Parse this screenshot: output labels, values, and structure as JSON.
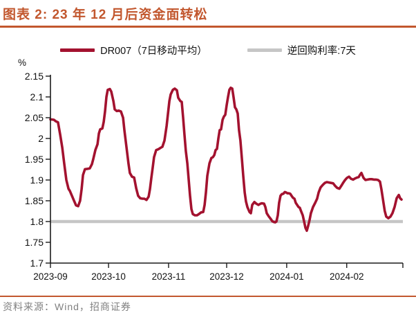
{
  "header": {
    "title": "图表 2: 23 年 12 月后资金面转松"
  },
  "footer": {
    "source": "资料来源：Wind，招商证券"
  },
  "colors": {
    "accent_rule": "#C2572E",
    "title_text": "#C2572E",
    "dr007_line": "#A3122F",
    "repo_line": "#C6C6C6",
    "axis": "#1a1a1a",
    "tick_text": "#111111",
    "source_text": "#808080"
  },
  "chart_data": {
    "type": "line",
    "title": "图表 2: 23 年 12 月后资金面转松",
    "unit_label": "%",
    "ylim": [
      1.7,
      2.15
    ],
    "grid": false,
    "legend_position": "top-center",
    "y_ticks": [
      {
        "v": 2.15,
        "label": "2.15"
      },
      {
        "v": 2.1,
        "label": "2.1"
      },
      {
        "v": 2.05,
        "label": "2.05"
      },
      {
        "v": 2.0,
        "label": "2"
      },
      {
        "v": 1.95,
        "label": "1.95"
      },
      {
        "v": 1.9,
        "label": "1.9"
      },
      {
        "v": 1.85,
        "label": "1.85"
      },
      {
        "v": 1.8,
        "label": "1.8"
      },
      {
        "v": 1.75,
        "label": "1.75"
      },
      {
        "v": 1.7,
        "label": "1.7"
      }
    ],
    "x_range_days": 182,
    "x_start": "2023-09-01",
    "x_ticks": [
      {
        "day": 0,
        "label": "2023-09"
      },
      {
        "day": 30,
        "label": "2023-10"
      },
      {
        "day": 61,
        "label": "2023-11"
      },
      {
        "day": 91,
        "label": "2023-12"
      },
      {
        "day": 122,
        "label": "2024-01"
      },
      {
        "day": 153,
        "label": "2024-02"
      },
      {
        "day": 182,
        "label": ""
      }
    ],
    "legend": [
      {
        "label": "DR007（7日移动平均）",
        "color": "#A3122F"
      },
      {
        "label": "逆回购利率:7天",
        "color": "#C6C6C6"
      }
    ],
    "series": [
      {
        "name": "DR007（7日移动平均）",
        "type": "line",
        "color": "#A3122F",
        "points": [
          [
            0,
            2.046
          ],
          [
            1.8,
            2.045
          ],
          [
            2.9,
            2.041
          ],
          [
            3.9,
            2.039
          ],
          [
            5,
            2.01
          ],
          [
            6.1,
            1.978
          ],
          [
            7.1,
            1.94
          ],
          [
            8.2,
            1.9
          ],
          [
            9.3,
            1.879
          ],
          [
            10,
            1.874
          ],
          [
            11.1,
            1.862
          ],
          [
            12.1,
            1.851
          ],
          [
            13.2,
            1.839
          ],
          [
            14.3,
            1.837
          ],
          [
            15.3,
            1.85
          ],
          [
            16.1,
            1.878
          ],
          [
            16.8,
            1.912
          ],
          [
            17.8,
            1.926
          ],
          [
            19.3,
            1.927
          ],
          [
            20.3,
            1.928
          ],
          [
            21.4,
            1.938
          ],
          [
            22.1,
            1.95
          ],
          [
            23.2,
            1.972
          ],
          [
            24.3,
            1.986
          ],
          [
            25,
            2.012
          ],
          [
            25.7,
            2.022
          ],
          [
            26.8,
            2.024
          ],
          [
            27.5,
            2.04
          ],
          [
            28.2,
            2.065
          ],
          [
            28.9,
            2.1
          ],
          [
            29.6,
            2.117
          ],
          [
            30.7,
            2.119
          ],
          [
            31.4,
            2.113
          ],
          [
            32.5,
            2.09
          ],
          [
            33.2,
            2.07
          ],
          [
            34.3,
            2.066
          ],
          [
            35.3,
            2.067
          ],
          [
            36.4,
            2.065
          ],
          [
            37.5,
            2.05
          ],
          [
            38.2,
            2.02
          ],
          [
            39.3,
            1.978
          ],
          [
            40.3,
            1.94
          ],
          [
            41,
            1.917
          ],
          [
            42.1,
            1.908
          ],
          [
            43.2,
            1.906
          ],
          [
            44.3,
            1.88
          ],
          [
            45.3,
            1.862
          ],
          [
            46.4,
            1.856
          ],
          [
            47.5,
            1.855
          ],
          [
            48.5,
            1.855
          ],
          [
            49.6,
            1.852
          ],
          [
            50.7,
            1.86
          ],
          [
            51.4,
            1.878
          ],
          [
            52.1,
            1.905
          ],
          [
            52.8,
            1.93
          ],
          [
            53.5,
            1.955
          ],
          [
            54.6,
            1.972
          ],
          [
            55.7,
            1.974
          ],
          [
            56.7,
            1.977
          ],
          [
            57.8,
            1.98
          ],
          [
            58.9,
            1.995
          ],
          [
            60,
            2.03
          ],
          [
            60.7,
            2.06
          ],
          [
            61.4,
            2.09
          ],
          [
            62.1,
            2.106
          ],
          [
            63.2,
            2.117
          ],
          [
            64.2,
            2.12
          ],
          [
            65.3,
            2.116
          ],
          [
            66,
            2.098
          ],
          [
            67.1,
            2.09
          ],
          [
            67.8,
            2.088
          ],
          [
            68.5,
            2.05
          ],
          [
            69.2,
            2.01
          ],
          [
            69.9,
            1.97
          ],
          [
            70.7,
            1.94
          ],
          [
            71.4,
            1.9
          ],
          [
            72.1,
            1.862
          ],
          [
            72.8,
            1.83
          ],
          [
            73.5,
            1.818
          ],
          [
            74.6,
            1.815
          ],
          [
            75.7,
            1.815
          ],
          [
            76.7,
            1.818
          ],
          [
            77.8,
            1.822
          ],
          [
            78.9,
            1.823
          ],
          [
            79.6,
            1.84
          ],
          [
            80.3,
            1.87
          ],
          [
            81,
            1.91
          ],
          [
            82.1,
            1.94
          ],
          [
            83.1,
            1.953
          ],
          [
            83.9,
            1.955
          ],
          [
            84.6,
            1.96
          ],
          [
            85.3,
            1.972
          ],
          [
            86,
            1.975
          ],
          [
            86.7,
            2.0
          ],
          [
            87.4,
            2.02
          ],
          [
            88.1,
            2.022
          ],
          [
            88.9,
            2.045
          ],
          [
            89.6,
            2.053
          ],
          [
            90.3,
            2.057
          ],
          [
            91,
            2.08
          ],
          [
            91.7,
            2.1
          ],
          [
            92.4,
            2.117
          ],
          [
            93.1,
            2.122
          ],
          [
            93.9,
            2.12
          ],
          [
            94.6,
            2.098
          ],
          [
            95.3,
            2.075
          ],
          [
            96,
            2.07
          ],
          [
            96.7,
            2.06
          ],
          [
            97.4,
            2.02
          ],
          [
            98.1,
            1.995
          ],
          [
            98.9,
            1.95
          ],
          [
            99.6,
            1.908
          ],
          [
            100.3,
            1.87
          ],
          [
            101,
            1.848
          ],
          [
            101.7,
            1.835
          ],
          [
            102.8,
            1.823
          ],
          [
            103.5,
            1.82
          ],
          [
            104.2,
            1.84
          ],
          [
            105.3,
            1.847
          ],
          [
            106.3,
            1.843
          ],
          [
            107.4,
            1.84
          ],
          [
            108.5,
            1.843
          ],
          [
            109.2,
            1.844
          ],
          [
            110.3,
            1.843
          ],
          [
            111,
            1.835
          ],
          [
            111.7,
            1.82
          ],
          [
            112.8,
            1.812
          ],
          [
            113.8,
            1.806
          ],
          [
            114.5,
            1.801
          ],
          [
            115.3,
            1.799
          ],
          [
            116,
            1.798
          ],
          [
            116.7,
            1.8
          ],
          [
            117.4,
            1.815
          ],
          [
            118.1,
            1.845
          ],
          [
            118.8,
            1.862
          ],
          [
            119.5,
            1.866
          ],
          [
            120.3,
            1.867
          ],
          [
            121,
            1.871
          ],
          [
            121.7,
            1.87
          ],
          [
            122.4,
            1.868
          ],
          [
            123.1,
            1.868
          ],
          [
            123.8,
            1.867
          ],
          [
            124.5,
            1.862
          ],
          [
            125.3,
            1.857
          ],
          [
            126,
            1.855
          ],
          [
            126.7,
            1.845
          ],
          [
            127.4,
            1.84
          ],
          [
            128.1,
            1.835
          ],
          [
            128.8,
            1.833
          ],
          [
            129.5,
            1.824
          ],
          [
            130.3,
            1.815
          ],
          [
            131,
            1.8
          ],
          [
            131.7,
            1.785
          ],
          [
            132.4,
            1.778
          ],
          [
            133.1,
            1.79
          ],
          [
            133.8,
            1.803
          ],
          [
            134.5,
            1.82
          ],
          [
            135.6,
            1.835
          ],
          [
            136.7,
            1.845
          ],
          [
            137.7,
            1.855
          ],
          [
            138.5,
            1.87
          ],
          [
            139.5,
            1.882
          ],
          [
            140.6,
            1.888
          ],
          [
            141.7,
            1.893
          ],
          [
            142.7,
            1.895
          ],
          [
            143.8,
            1.894
          ],
          [
            144.9,
            1.893
          ],
          [
            146,
            1.892
          ],
          [
            147,
            1.886
          ],
          [
            148.1,
            1.881
          ],
          [
            149.2,
            1.879
          ],
          [
            150.2,
            1.886
          ],
          [
            151,
            1.892
          ],
          [
            152,
            1.899
          ],
          [
            153.1,
            1.905
          ],
          [
            154.2,
            1.908
          ],
          [
            155.2,
            1.903
          ],
          [
            156.3,
            1.901
          ],
          [
            157.4,
            1.904
          ],
          [
            158.4,
            1.906
          ],
          [
            159.2,
            1.907
          ],
          [
            159.9,
            1.913
          ],
          [
            160.6,
            1.917
          ],
          [
            161.7,
            1.905
          ],
          [
            162.7,
            1.9
          ],
          [
            163.8,
            1.901
          ],
          [
            164.9,
            1.902
          ],
          [
            165.9,
            1.902
          ],
          [
            167,
            1.901
          ],
          [
            168.1,
            1.901
          ],
          [
            169.2,
            1.9
          ],
          [
            170.2,
            1.896
          ],
          [
            170.9,
            1.878
          ],
          [
            171.8,
            1.851
          ],
          [
            172.6,
            1.826
          ],
          [
            173.4,
            1.812
          ],
          [
            174.5,
            1.808
          ],
          [
            175.6,
            1.812
          ],
          [
            176.6,
            1.82
          ],
          [
            177.7,
            1.835
          ],
          [
            178.8,
            1.856
          ],
          [
            179.9,
            1.864
          ],
          [
            180.6,
            1.856
          ],
          [
            181.3,
            1.853
          ]
        ]
      },
      {
        "name": "逆回购利率:7天",
        "type": "hline",
        "color": "#C6C6C6",
        "value": 1.8
      }
    ]
  }
}
